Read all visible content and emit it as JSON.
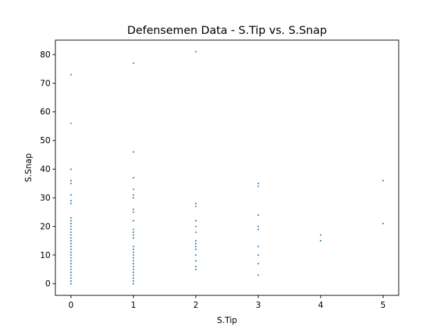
{
  "chart_data": {
    "type": "scatter",
    "title": "Defensemen Data - S.Tip vs. S.Snap",
    "xlabel": "S.Tip",
    "ylabel": "S.Snap",
    "xlim": [
      -0.25,
      5.25
    ],
    "ylim": [
      -4.05,
      85.05
    ],
    "xticks": [
      0,
      1,
      2,
      3,
      4,
      5
    ],
    "yticks": [
      0,
      10,
      20,
      30,
      40,
      50,
      60,
      70,
      80
    ],
    "grid": false,
    "marker_color": "#1f77b4",
    "series": [
      {
        "points": [
          [
            0,
            73
          ],
          [
            0,
            56
          ],
          [
            0,
            40
          ],
          [
            0,
            36
          ],
          [
            0,
            35
          ],
          [
            0,
            31
          ],
          [
            0,
            29
          ],
          [
            0,
            28
          ],
          [
            0,
            23
          ],
          [
            0,
            22
          ],
          [
            0,
            21
          ],
          [
            0,
            20
          ],
          [
            0,
            19
          ],
          [
            0,
            18
          ],
          [
            0,
            17
          ],
          [
            0,
            16
          ],
          [
            0,
            15
          ],
          [
            0,
            14
          ],
          [
            0,
            13
          ],
          [
            0,
            12
          ],
          [
            0,
            11
          ],
          [
            0,
            10
          ],
          [
            0,
            9
          ],
          [
            0,
            8
          ],
          [
            0,
            7
          ],
          [
            0,
            6
          ],
          [
            0,
            5
          ],
          [
            0,
            4
          ],
          [
            0,
            3
          ],
          [
            0,
            2
          ],
          [
            0,
            1
          ],
          [
            0,
            0
          ],
          [
            1,
            77
          ],
          [
            1,
            46
          ],
          [
            1,
            37
          ],
          [
            1,
            33
          ],
          [
            1,
            31
          ],
          [
            1,
            30
          ],
          [
            1,
            26
          ],
          [
            1,
            25
          ],
          [
            1,
            22
          ],
          [
            1,
            19
          ],
          [
            1,
            18
          ],
          [
            1,
            17
          ],
          [
            1,
            16
          ],
          [
            1,
            13
          ],
          [
            1,
            12
          ],
          [
            1,
            11
          ],
          [
            1,
            10
          ],
          [
            1,
            9
          ],
          [
            1,
            8
          ],
          [
            1,
            7
          ],
          [
            1,
            6
          ],
          [
            1,
            5
          ],
          [
            1,
            4
          ],
          [
            1,
            3
          ],
          [
            1,
            2
          ],
          [
            1,
            1
          ],
          [
            1,
            0
          ],
          [
            2,
            81
          ],
          [
            2,
            28
          ],
          [
            2,
            27
          ],
          [
            2,
            22
          ],
          [
            2,
            20
          ],
          [
            2,
            18
          ],
          [
            2,
            15
          ],
          [
            2,
            14
          ],
          [
            2,
            13
          ],
          [
            2,
            12
          ],
          [
            2,
            10
          ],
          [
            2,
            8
          ],
          [
            2,
            6
          ],
          [
            2,
            5
          ],
          [
            3,
            35
          ],
          [
            3,
            34
          ],
          [
            3,
            24
          ],
          [
            3,
            20
          ],
          [
            3,
            19
          ],
          [
            3,
            13
          ],
          [
            3,
            10
          ],
          [
            3,
            7
          ],
          [
            3,
            3
          ],
          [
            4,
            17
          ],
          [
            4,
            15
          ],
          [
            5,
            36
          ],
          [
            5,
            21
          ]
        ]
      }
    ]
  }
}
